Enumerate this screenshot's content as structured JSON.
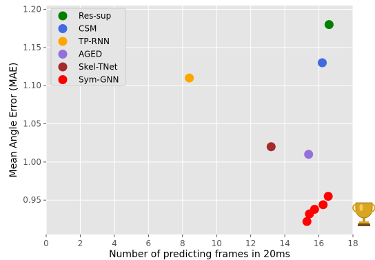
{
  "chart_data": {
    "type": "scatter",
    "title": "",
    "xlabel": "Number of predicting frames in 20ms",
    "ylabel": "Mean Angle Error (MAE)",
    "xlim": [
      0,
      18
    ],
    "ylim": [
      0.905,
      1.205
    ],
    "xticks": [
      "0",
      "2",
      "4",
      "6",
      "8",
      "10",
      "12",
      "14",
      "16",
      "18"
    ],
    "yticks": [
      "0.95",
      "1.00",
      "1.05",
      "1.10",
      "1.15",
      "1.20"
    ],
    "grid": true,
    "legend_position": "top-left",
    "series": [
      {
        "name": "Res-sup",
        "color": "#008000",
        "points": [
          [
            16.6,
            1.18
          ]
        ]
      },
      {
        "name": "CSM",
        "color": "#4169E1",
        "points": [
          [
            16.2,
            1.13
          ]
        ]
      },
      {
        "name": "TP-RNN",
        "color": "#FFA500",
        "points": [
          [
            8.4,
            1.11
          ]
        ]
      },
      {
        "name": "AGED",
        "color": "#9370DB",
        "points": [
          [
            15.4,
            1.01
          ]
        ]
      },
      {
        "name": "Skel-TNet",
        "color": "#A52A2A",
        "points": [
          [
            13.2,
            1.02
          ]
        ]
      },
      {
        "name": "Sym-GNN",
        "color": "#FF0000",
        "points": [
          [
            15.3,
            0.922
          ],
          [
            15.45,
            0.932
          ],
          [
            15.75,
            0.938
          ],
          [
            16.25,
            0.944
          ],
          [
            16.55,
            0.955
          ]
        ]
      }
    ],
    "annotation_icon": "trophy-icon"
  }
}
